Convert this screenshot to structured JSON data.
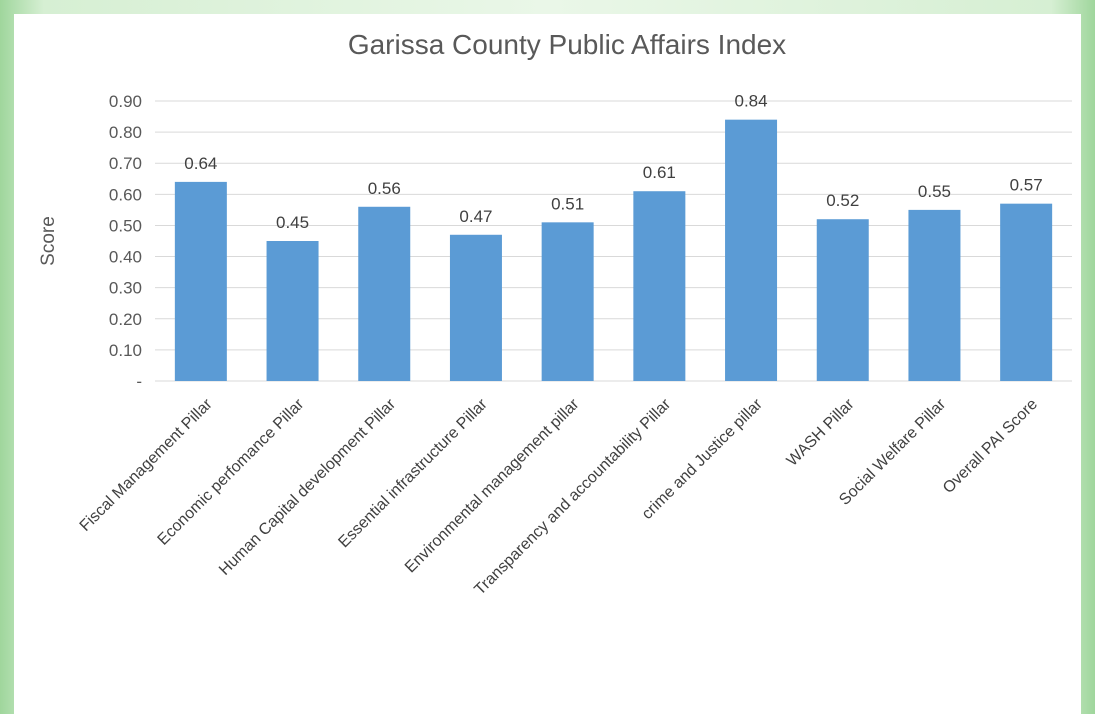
{
  "chart_data": {
    "type": "bar",
    "title": "Garissa County Public Affairs Index",
    "xlabel": "",
    "ylabel": "Score",
    "ylim": [
      0,
      0.9
    ],
    "yticks": [
      "-",
      "0.10",
      "0.20",
      "0.30",
      "0.40",
      "0.50",
      "0.60",
      "0.70",
      "0.80",
      "0.90"
    ],
    "grid": true,
    "legend": "none",
    "categories": [
      "Fiscal Management Pillar",
      "Economic perfomance Pillar",
      "Human Capital development Pillar",
      "Essential infrastructure Pillar",
      "Environmental management pillar",
      "Transparency and accountability Pillar",
      "crime and Justice pillar",
      "WASH Pillar",
      "Social Welfare Pillar",
      "Overall PAI Score"
    ],
    "values": [
      0.64,
      0.45,
      0.56,
      0.47,
      0.51,
      0.61,
      0.84,
      0.52,
      0.55,
      0.57
    ],
    "data_labels": [
      "0.64",
      "0.45",
      "0.56",
      "0.47",
      "0.51",
      "0.61",
      "0.84",
      "0.52",
      "0.55",
      "0.57"
    ],
    "bar_color": "#5b9bd5",
    "grid_color": "#d9d9d9"
  }
}
